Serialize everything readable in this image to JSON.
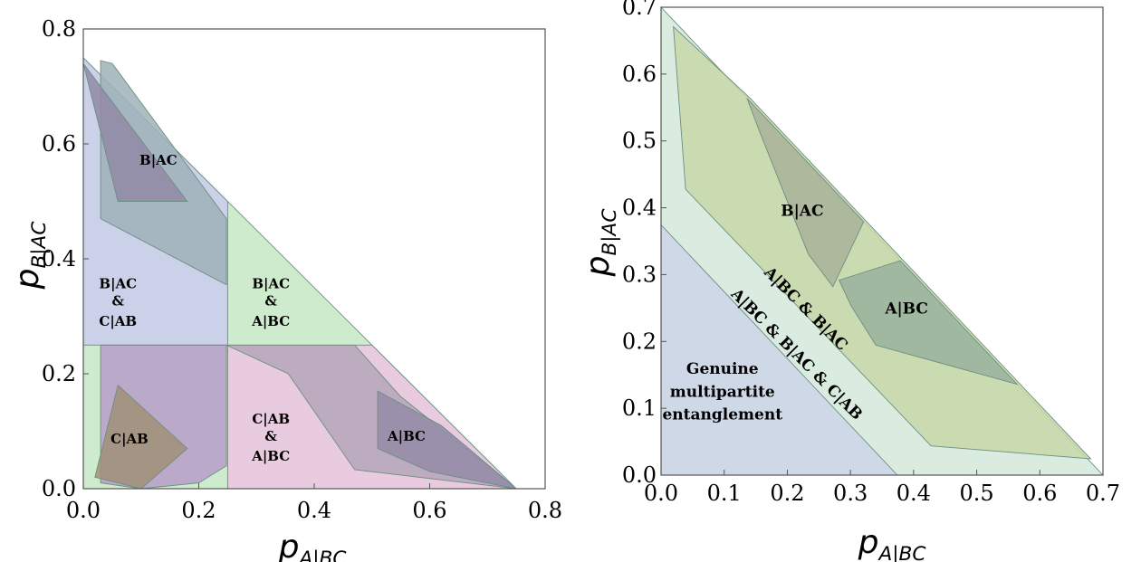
{
  "chart_data": [
    {
      "type": "area",
      "x_axis": {
        "label": {
          "main": "p",
          "sub": "A|BC"
        },
        "range": [
          0,
          0.8
        ],
        "ticks": [
          "0.0",
          "0.2",
          "0.4",
          "0.6",
          "0.8"
        ]
      },
      "y_axis": {
        "label": {
          "main": "p",
          "sub": "B|AC"
        },
        "range": [
          0,
          0.8
        ],
        "ticks": [
          "0.0",
          "0.2",
          "0.4",
          "0.6",
          "0.8"
        ]
      },
      "grid": false,
      "series": [
        {
          "color": "#c7e8c6",
          "polygon": [
            [
              0,
              0
            ],
            [
              0.75,
              0
            ],
            [
              0,
              0.75
            ]
          ]
        },
        {
          "color": "#c9cdec",
          "polygon": [
            [
              0,
              0.25
            ],
            [
              0,
              0.75
            ],
            [
              0.25,
              0.5
            ],
            [
              0.25,
              0.25
            ]
          ]
        },
        {
          "color": "#ecc6e2",
          "polygon": [
            [
              0.25,
              0
            ],
            [
              0.75,
              0
            ],
            [
              0.5,
              0.25
            ],
            [
              0.25,
              0.25
            ]
          ]
        },
        {
          "color": "#9fb2b8",
          "polygon": [
            [
              0.03,
              0.71
            ],
            [
              0.03,
              0.47
            ],
            [
              0.2,
              0.38
            ],
            [
              0.248,
              0.355
            ],
            [
              0.248,
              0.47
            ],
            [
              0.05,
              0.74
            ],
            [
              0.03,
              0.745
            ]
          ]
        },
        {
          "color": "#b5a6ba",
          "polygon": [
            [
              0.03,
              0.25
            ],
            [
              0.47,
              0.25
            ],
            [
              0.55,
              0.16
            ],
            [
              0.75,
              0.0
            ],
            [
              0.47,
              0.033
            ],
            [
              0.355,
              0.2
            ],
            [
              0.248,
              0.25
            ]
          ]
        },
        {
          "color": "#b79dc9",
          "polygon": [
            [
              0.03,
              0.25
            ],
            [
              0.248,
              0.25
            ],
            [
              0.248,
              0.04
            ],
            [
              0.2,
              0.01
            ],
            [
              0.1,
              0.0
            ],
            [
              0.03,
              0.01
            ]
          ]
        },
        {
          "color": "#928aa6",
          "polygon": [
            [
              0.0,
              0.74
            ],
            [
              0.06,
              0.5
            ],
            [
              0.18,
              0.5
            ],
            [
              0.03,
              0.7
            ]
          ]
        },
        {
          "color": "#948ba7",
          "polygon": [
            [
              0.51,
              0.07
            ],
            [
              0.51,
              0.17
            ],
            [
              0.62,
              0.11
            ],
            [
              0.75,
              0.0
            ],
            [
              0.6,
              0.03
            ]
          ]
        },
        {
          "color": "#a09178",
          "polygon": [
            [
              0.02,
              0.02
            ],
            [
              0.06,
              0.18
            ],
            [
              0.18,
              0.07
            ],
            [
              0.1,
              0.0
            ]
          ]
        }
      ],
      "annotations": [
        {
          "text": "B|AC",
          "x": 0.13,
          "y": 0.57
        },
        {
          "text": "B|AC",
          "x": 0.06,
          "y": 0.355
        },
        {
          "text": "&",
          "x": 0.06,
          "y": 0.325
        },
        {
          "text": "C|AB",
          "x": 0.06,
          "y": 0.29
        },
        {
          "text": "B|AC",
          "x": 0.325,
          "y": 0.355
        },
        {
          "text": "&",
          "x": 0.325,
          "y": 0.325
        },
        {
          "text": "A|BC",
          "x": 0.325,
          "y": 0.29
        },
        {
          "text": "C|AB",
          "x": 0.325,
          "y": 0.12
        },
        {
          "text": "&",
          "x": 0.325,
          "y": 0.09
        },
        {
          "text": "A|BC",
          "x": 0.325,
          "y": 0.055
        },
        {
          "text": "A|BC",
          "x": 0.56,
          "y": 0.09
        },
        {
          "text": "C|AB",
          "x": 0.08,
          "y": 0.085
        }
      ]
    },
    {
      "type": "area",
      "x_axis": {
        "label": {
          "main": "p",
          "sub": "A|BC"
        },
        "range": [
          0,
          0.72
        ],
        "ticks": [
          "0.0",
          "0.1",
          "0.2",
          "0.3",
          "0.4",
          "0.5",
          "0.6",
          "0.7"
        ]
      },
      "y_axis": {
        "label": {
          "main": "p",
          "sub": "B|AC"
        },
        "range": [
          0,
          0.72
        ],
        "ticks": [
          "0.0",
          "0.1",
          "0.2",
          "0.3",
          "0.4",
          "0.5",
          "0.6",
          "0.7"
        ]
      },
      "grid": false,
      "series": [
        {
          "color": "#d3e7da",
          "polygon": [
            [
              0,
              0
            ],
            [
              0.72,
              0
            ],
            [
              0,
              0.72
            ]
          ]
        },
        {
          "color": "#cdd5e8",
          "polygon": [
            [
              0,
              0
            ],
            [
              0.385,
              0
            ],
            [
              0,
              0.385
            ]
          ]
        },
        {
          "color": "#c8d8a8",
          "polygon": [
            [
              0.02,
              0.69
            ],
            [
              0.04,
              0.44
            ],
            [
              0.44,
              0.045
            ],
            [
              0.7,
              0.025
            ],
            [
              0.145,
              0.58
            ]
          ]
        },
        {
          "color": "#a9b199",
          "polygon": [
            [
              0.14,
              0.58
            ],
            [
              0.16,
              0.53
            ],
            [
              0.24,
              0.34
            ],
            [
              0.28,
              0.29
            ],
            [
              0.33,
              0.39
            ]
          ]
        },
        {
          "color": "#9ab29d",
          "polygon": [
            [
              0.39,
              0.33
            ],
            [
              0.58,
              0.14
            ],
            [
              0.35,
              0.2
            ],
            [
              0.31,
              0.26
            ],
            [
              0.29,
              0.3
            ]
          ]
        }
      ],
      "annotations": [
        {
          "text": "B|AC",
          "x": 0.23,
          "y": 0.405
        },
        {
          "text": "A|BC",
          "x": 0.4,
          "y": 0.255
        },
        {
          "text": "A|BC & B|AC",
          "x": 0.235,
          "y": 0.255,
          "angle": 45
        },
        {
          "text": "A|BC & B|AC & C|AB",
          "x": 0.22,
          "y": 0.185,
          "angle": 45
        },
        {
          "text": "Genuine",
          "x": 0.1,
          "y": 0.162
        },
        {
          "text": "multipartite",
          "x": 0.1,
          "y": 0.127
        },
        {
          "text": "entanglement",
          "x": 0.1,
          "y": 0.092
        }
      ]
    }
  ]
}
